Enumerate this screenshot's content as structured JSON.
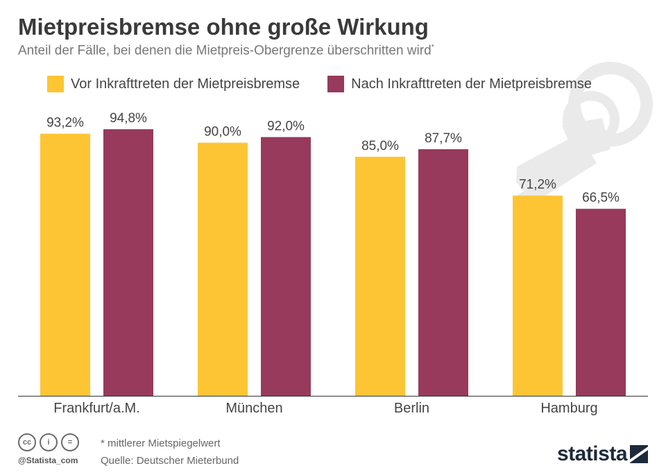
{
  "header": {
    "title": "Mietpreisbremse ohne große Wirkung",
    "subtitle": "Anteil der Fälle, bei denen die Mietpreis-Obergrenze überschritten wird",
    "subtitle_mark": "*"
  },
  "legend": {
    "items": [
      {
        "label": "Vor Inkrafttreten der Mietpreisbremse",
        "color": "#fdc533"
      },
      {
        "label": "Nach Inkrafttreten der Mietpreisbremse",
        "color": "#973a5c"
      }
    ]
  },
  "chart_data": {
    "type": "bar",
    "categories": [
      "Frankfurt/a.M.",
      "München",
      "Berlin",
      "Hamburg"
    ],
    "series": [
      {
        "name": "Vor Inkrafttreten der Mietpreisbremse",
        "values": [
          93.2,
          90.0,
          85.0,
          71.2
        ],
        "labels": [
          "93,2%",
          "90,0%",
          "85,0%",
          "71,2%"
        ],
        "color": "#fdc533"
      },
      {
        "name": "Nach Inkrafttreten der Mietpreisbremse",
        "values": [
          94.8,
          92.0,
          87.7,
          66.5
        ],
        "labels": [
          "94,8%",
          "92,0%",
          "87,7%",
          "66,5%"
        ],
        "color": "#973a5c"
      }
    ],
    "ylim": [
      0,
      100
    ],
    "grid": false,
    "legend_position": "top",
    "background_icon": "key-icon"
  },
  "footer": {
    "license_icons": [
      "cc-icon",
      "by-icon",
      "nd-icon"
    ],
    "license_glyphs": [
      "cc",
      "i",
      "="
    ],
    "handle": "@Statista_com",
    "note": "* mittlerer Mietspiegelwert",
    "source": "Quelle: Deutscher Mieterbund",
    "brand": "statista"
  }
}
